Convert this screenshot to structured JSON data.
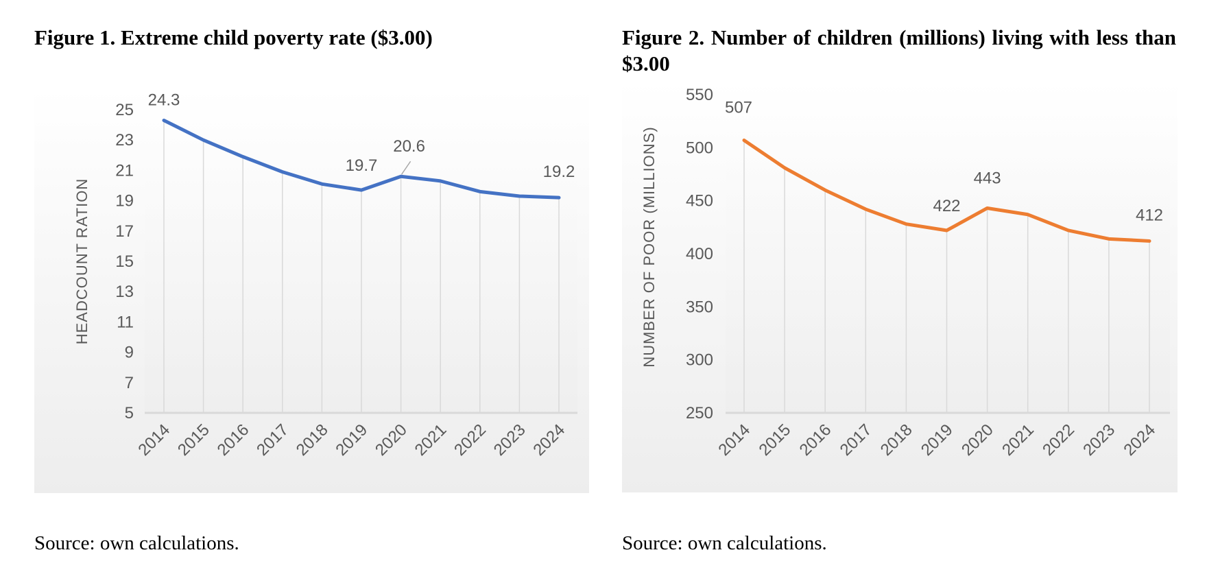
{
  "figures": [
    {
      "title": "Figure 1. Extreme child poverty rate ($3.00)",
      "source": "Source: own calculations."
    },
    {
      "title": "Figure 2. Number of children (millions) living with less than $3.00",
      "source": "Source: own calculations."
    }
  ],
  "chart_data": [
    {
      "type": "line",
      "title": "Figure 1. Extreme child poverty rate ($3.00)",
      "xlabel": "",
      "ylabel": "HEADCOUNT RATION",
      "categories": [
        "2014",
        "2015",
        "2016",
        "2017",
        "2018",
        "2019",
        "2020",
        "2021",
        "2022",
        "2023",
        "2024"
      ],
      "series": [
        {
          "values": [
            24.3,
            23.0,
            21.9,
            20.9,
            20.1,
            19.7,
            20.6,
            20.3,
            19.6,
            19.3,
            19.2
          ],
          "color": "#4472C4"
        }
      ],
      "data_labels": [
        {
          "category": "2014",
          "text": "24.3"
        },
        {
          "category": "2019",
          "text": "19.7"
        },
        {
          "category": "2020",
          "text": "20.6"
        },
        {
          "category": "2024",
          "text": "19.2"
        }
      ],
      "ylim": [
        5,
        25
      ],
      "yticks": [
        "5",
        "7",
        "9",
        "11",
        "13",
        "15",
        "17",
        "19",
        "21",
        "23",
        "25"
      ],
      "grid": "vertical",
      "legend": "none"
    },
    {
      "type": "line",
      "title": "Figure 2. Number of children (millions) living with less than $3.00",
      "xlabel": "",
      "ylabel": "NUMBER OF POOR (MILLIONS)",
      "categories": [
        "2014",
        "2015",
        "2016",
        "2017",
        "2018",
        "2019",
        "2020",
        "2021",
        "2022",
        "2023",
        "2024"
      ],
      "series": [
        {
          "values": [
            507,
            481,
            460,
            442,
            428,
            422,
            443,
            437,
            422,
            414,
            412
          ],
          "color": "#ED7D31"
        }
      ],
      "data_labels": [
        {
          "category": "2014",
          "text": "507"
        },
        {
          "category": "2019",
          "text": "422"
        },
        {
          "category": "2020",
          "text": "443"
        },
        {
          "category": "2024",
          "text": "412"
        }
      ],
      "ylim": [
        250,
        550
      ],
      "yticks": [
        "250",
        "300",
        "350",
        "400",
        "450",
        "500",
        "550"
      ],
      "grid": "vertical",
      "legend": "none"
    }
  ]
}
